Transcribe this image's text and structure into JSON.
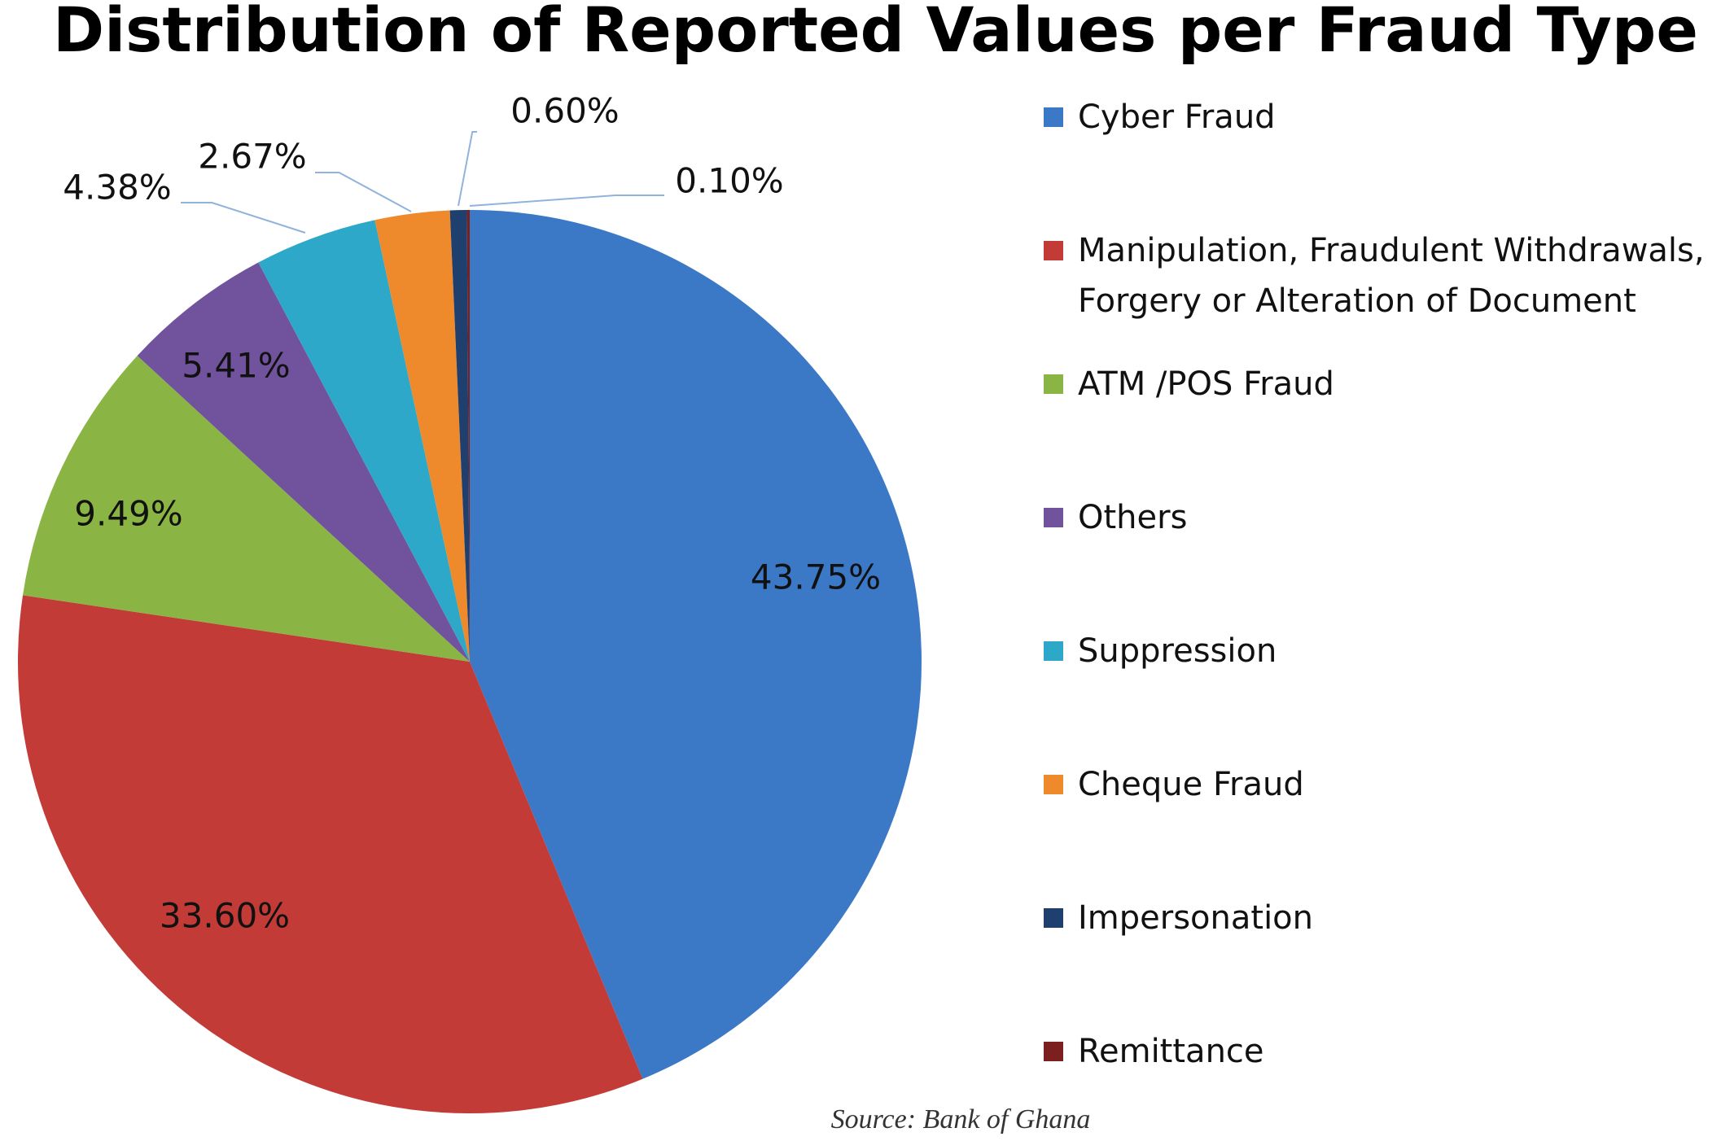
{
  "chart_data": {
    "type": "pie",
    "title": "Distribution of Reported Values per Fraud Type",
    "categories": [
      "Cyber Fraud",
      "Manipulation, Fraudulent Withdrawals, Forgery or Alteration of Document",
      "ATM /POS Fraud",
      "Others",
      "Suppression",
      "Cheque Fraud",
      "Impersonation",
      "Remittance"
    ],
    "values": [
      43.75,
      33.6,
      9.49,
      5.41,
      4.38,
      2.67,
      0.6,
      0.1
    ],
    "value_labels": [
      "43.75%",
      "33.60%",
      "9.49%",
      "5.41%",
      "4.38%",
      "2.67%",
      "0.60%",
      "0.10%"
    ],
    "colors": [
      "#3b78c6",
      "#c23b37",
      "#8ab443",
      "#71529c",
      "#2ea8c8",
      "#ee8a2b",
      "#1f3f6f",
      "#7c1f1f"
    ],
    "source": "Source: Bank of Ghana"
  }
}
